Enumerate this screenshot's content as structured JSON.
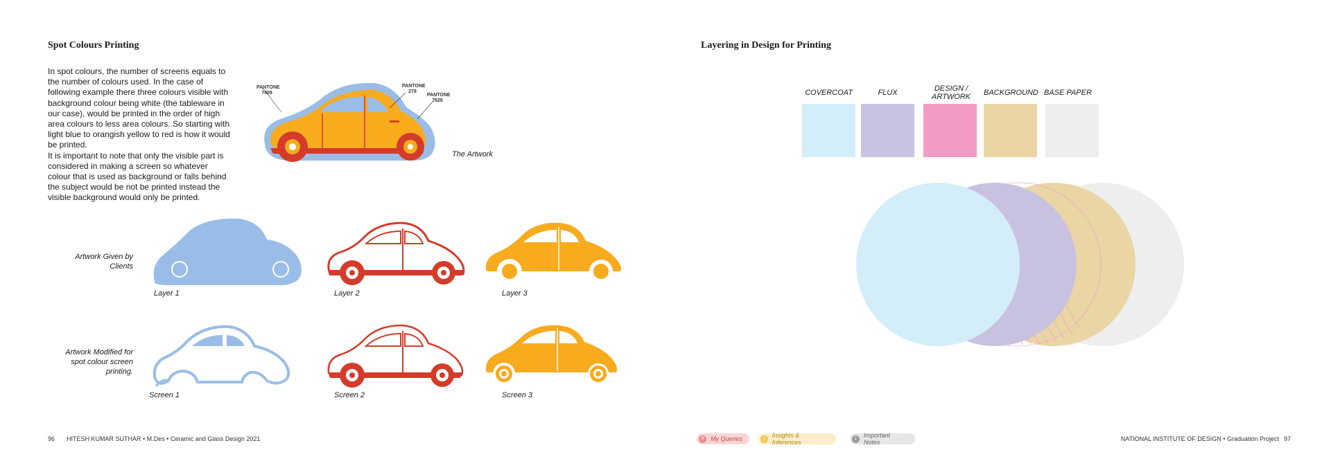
{
  "left_page": {
    "title": "Spot Colours Printing",
    "paragraph": "In spot colours, the number of screens equals to the number of colours used. In the case of following example there three colours visible with background colour being white (the tableware in our case), would be printed in the order of high area colours to less area colours. So starting with light blue to orangish yellow to red is how it would be printed.\nIt is important to note that only the visible part is considered in making a screen so whatever colour that is used as background or falls behind the subject would be not be printed instead the visible background would only be printed.",
    "artwork_caption": "The Artwork",
    "pantone_labels": [
      {
        "line1": "PANTONE",
        "line2": "7409"
      },
      {
        "line1": "PANTONE",
        "line2": "278"
      },
      {
        "line1": "PANTONE",
        "line2": "7626"
      }
    ],
    "row1_label": "Artwork Given by Clients",
    "row2_label": "Artwork Modified for spot colour screen printing.",
    "layers": [
      "Layer 1",
      "Layer 2",
      "Layer 3"
    ],
    "screens": [
      "Screen 1",
      "Screen 2",
      "Screen 3"
    ],
    "colors": {
      "blue": "#99bde6",
      "red": "#d43b2a",
      "yellow": "#f7ab1d"
    }
  },
  "right_page": {
    "title": "Layering in Design for Printing",
    "swatches": [
      {
        "label": "COVERCOAT",
        "color": "#d3eef9"
      },
      {
        "label": "FLUX",
        "color": "#c8c2e0"
      },
      {
        "label": "DESIGN / ARTWORK",
        "color": "#f39bc4"
      },
      {
        "label": "BACKGROUND",
        "color": "#ead5a5"
      },
      {
        "label": "BASE PAPER",
        "color": "#eeeeee"
      }
    ]
  },
  "footer": {
    "left_page_number": "96",
    "left_text": "HITESH KUMAR SUTHAR • M.Des • Ceramic and Glass Design 2021",
    "pills": [
      {
        "label": "My Queries",
        "icon": "question-icon",
        "bg": "#f9d6d6",
        "dot": "#ec8a8a"
      },
      {
        "label": "Insights & Inferences",
        "icon": "lightbulb-icon",
        "bg": "#fbefc9",
        "dot": "#f1c654"
      },
      {
        "label": "Important Notes",
        "icon": "exclamation-icon",
        "bg": "#e6e6e6",
        "dot": "#9a9a9a"
      }
    ],
    "right_text": "NATIONAL INSTITUTE OF DESIGN • Graduation Project",
    "right_page_number": "97"
  }
}
